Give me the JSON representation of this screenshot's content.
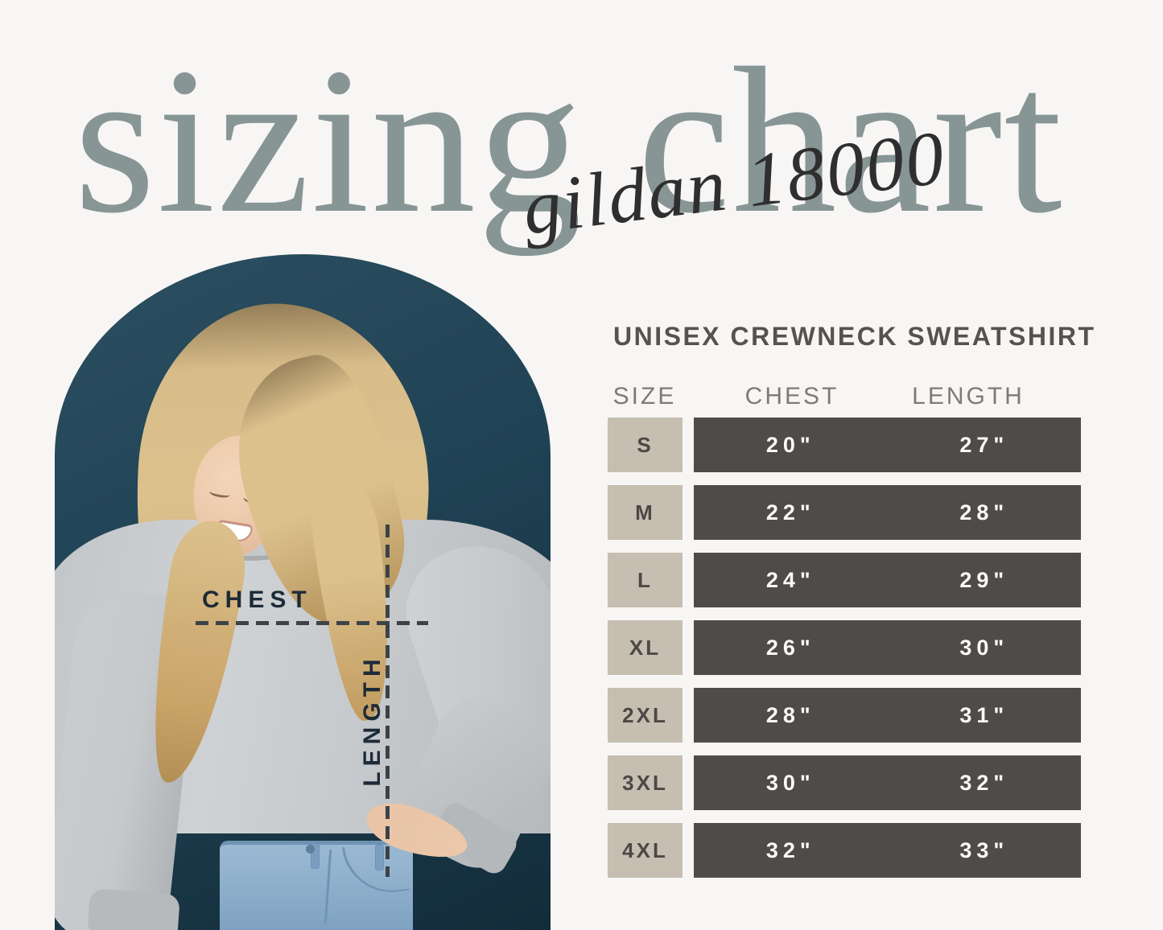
{
  "header": {
    "title": "sizing chart",
    "script": "gildan 18000"
  },
  "photo": {
    "chest_label": "CHEST",
    "length_label": "LENGTH"
  },
  "table": {
    "heading": "UNISEX CREWNECK SWEATSHIRT",
    "columns": [
      "SIZE",
      "CHEST",
      "LENGTH"
    ],
    "rows": [
      {
        "size": "S",
        "chest": "20\"",
        "length": "27\""
      },
      {
        "size": "M",
        "chest": "22\"",
        "length": "28\""
      },
      {
        "size": "L",
        "chest": "24\"",
        "length": "29\""
      },
      {
        "size": "XL",
        "chest": "26\"",
        "length": "30\""
      },
      {
        "size": "2XL",
        "chest": "28\"",
        "length": "31\""
      },
      {
        "size": "3XL",
        "chest": "30\"",
        "length": "32\""
      },
      {
        "size": "4XL",
        "chest": "32\"",
        "length": "33\""
      }
    ]
  },
  "colors": {
    "bg": "#f7f6f4",
    "sage": "#879695",
    "ink": "#2f2f2f",
    "teal-light": "#2c4f61",
    "teal": "#1f4254",
    "teal-dark": "#132c3a",
    "beige": "#c6beb1",
    "dark-row": "#4e4b49",
    "heading": "#56524f",
    "subhead": "#7d7a77",
    "navy": "#1d2b38",
    "dash": "#3c4348",
    "hair": "#dcc18d",
    "hair-dark": "#b28f55",
    "skin": "#ecc8aa",
    "sweat": "#c6c9cc",
    "sweat-dark": "#b3b7ba",
    "jeans": "#8fb0cc"
  },
  "chart_data": {
    "type": "table",
    "title": "sizing chart",
    "subtitle": "gildan 18000",
    "product": "UNISEX CREWNECK SWEATSHIRT",
    "columns": [
      "SIZE",
      "CHEST",
      "LENGTH"
    ],
    "rows": [
      [
        "S",
        "20\"",
        "27\""
      ],
      [
        "M",
        "22\"",
        "28\""
      ],
      [
        "L",
        "24\"",
        "29\""
      ],
      [
        "XL",
        "26\"",
        "30\""
      ],
      [
        "2XL",
        "28\"",
        "31\""
      ],
      [
        "3XL",
        "30\"",
        "32\""
      ],
      [
        "4XL",
        "32\"",
        "33\""
      ]
    ],
    "units": "inches",
    "legend_position": "none",
    "grid": false
  }
}
